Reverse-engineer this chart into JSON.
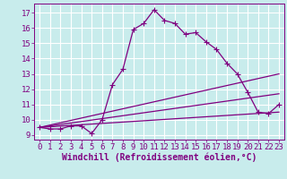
{
  "xlabel": "Windchill (Refroidissement éolien,°C)",
  "bg_color": "#c8ecec",
  "grid_color": "#ffffff",
  "line_color": "#800080",
  "xlim": [
    -0.5,
    23.5
  ],
  "ylim": [
    8.7,
    17.6
  ],
  "yticks": [
    9,
    10,
    11,
    12,
    13,
    14,
    15,
    16,
    17
  ],
  "xticks": [
    0,
    1,
    2,
    3,
    4,
    5,
    6,
    7,
    8,
    9,
    10,
    11,
    12,
    13,
    14,
    15,
    16,
    17,
    18,
    19,
    20,
    21,
    22,
    23
  ],
  "line1_x": [
    0,
    1,
    2,
    3,
    4,
    5,
    6,
    7,
    8,
    9,
    10,
    11,
    12,
    13,
    14,
    15,
    16,
    17,
    18,
    19,
    20,
    21,
    22,
    23
  ],
  "line1_y": [
    9.5,
    9.4,
    9.4,
    9.6,
    9.6,
    9.1,
    10.0,
    12.3,
    13.3,
    15.9,
    16.3,
    17.2,
    16.5,
    16.3,
    15.6,
    15.7,
    15.1,
    14.6,
    13.7,
    13.0,
    11.8,
    10.5,
    10.4,
    11.0
  ],
  "line2_x": [
    0,
    23
  ],
  "line2_y": [
    9.5,
    13.0
  ],
  "line3_x": [
    0,
    23
  ],
  "line3_y": [
    9.5,
    11.7
  ],
  "line4_x": [
    0,
    23
  ],
  "line4_y": [
    9.5,
    10.5
  ],
  "tick_fontsize": 6.5,
  "label_fontsize": 7
}
